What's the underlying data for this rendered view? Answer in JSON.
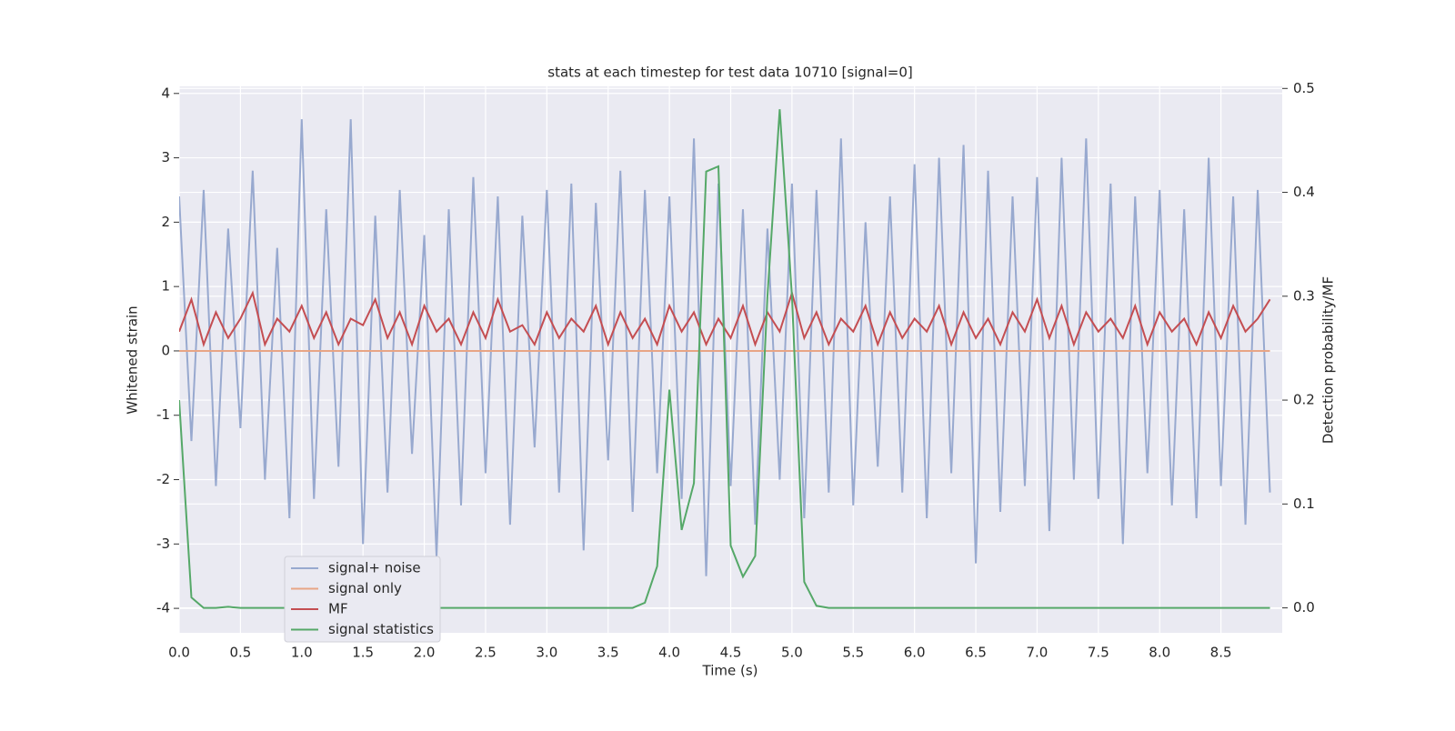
{
  "chart_data": {
    "type": "line",
    "title": "stats at each timestep for test data 10710 [signal=0]",
    "xlabel": "Time (s)",
    "ylabel": "Whitened strain",
    "y2label": "Detection probability/MF",
    "x": [
      0,
      0.1,
      0.2,
      0.3,
      0.4,
      0.5,
      0.6,
      0.7,
      0.8,
      0.9,
      1,
      1.1,
      1.2,
      1.3,
      1.4,
      1.5,
      1.6,
      1.7,
      1.8,
      1.9,
      2,
      2.1,
      2.2,
      2.3,
      2.4,
      2.5,
      2.6,
      2.7,
      2.8,
      2.9,
      3,
      3.1,
      3.2,
      3.3,
      3.4,
      3.5,
      3.6,
      3.7,
      3.8,
      3.9,
      4,
      4.1,
      4.2,
      4.3,
      4.4,
      4.5,
      4.6,
      4.7,
      4.8,
      4.9,
      5,
      5.1,
      5.2,
      5.3,
      5.4,
      5.5,
      5.6,
      5.7,
      5.8,
      5.9,
      6,
      6.1,
      6.2,
      6.3,
      6.4,
      6.5,
      6.6,
      6.7,
      6.8,
      6.9,
      7,
      7.1,
      7.2,
      7.3,
      7.4,
      7.5,
      7.6,
      7.7,
      7.8,
      7.9,
      8,
      8.1,
      8.2,
      8.3,
      8.4,
      8.5,
      8.6,
      8.7,
      8.8,
      8.9
    ],
    "series": [
      {
        "name": "signal+ noise",
        "color": "#98a9cf",
        "values": [
          2.4,
          -1.4,
          2.5,
          -2.1,
          1.9,
          -1.2,
          2.8,
          -2.0,
          1.6,
          -2.6,
          3.6,
          -2.3,
          2.2,
          -1.8,
          3.6,
          -3.0,
          2.1,
          -2.2,
          2.5,
          -1.6,
          1.8,
          -3.2,
          2.2,
          -2.4,
          2.7,
          -1.9,
          2.4,
          -2.7,
          2.1,
          -1.5,
          2.5,
          -2.2,
          2.6,
          -3.1,
          2.3,
          -1.7,
          2.8,
          -2.5,
          2.5,
          -1.9,
          2.4,
          -2.3,
          3.3,
          -3.5,
          2.6,
          -2.1,
          2.2,
          -2.7,
          1.9,
          -2.0,
          2.6,
          -2.6,
          2.5,
          -2.2,
          3.3,
          -2.4,
          2.0,
          -1.8,
          2.4,
          -2.2,
          2.9,
          -2.6,
          3.0,
          -1.9,
          3.2,
          -3.3,
          2.8,
          -2.5,
          2.4,
          -2.1,
          2.7,
          -2.8,
          3.0,
          -2.0,
          3.3,
          -2.3,
          2.6,
          -3.0,
          2.4,
          -1.9,
          2.5,
          -2.4,
          2.2,
          -2.6,
          3.0,
          -2.1,
          2.4,
          -2.7,
          2.5,
          -2.2
        ]
      },
      {
        "name": "signal only",
        "color": "#e8a585",
        "values": [
          0,
          0,
          0,
          0,
          0,
          0,
          0,
          0,
          0,
          0,
          0,
          0,
          0,
          0,
          0,
          0,
          0,
          0,
          0,
          0,
          0,
          0,
          0,
          0,
          0,
          0,
          0,
          0,
          0,
          0,
          0,
          0,
          0,
          0,
          0,
          0,
          0,
          0,
          0,
          0,
          0,
          0,
          0,
          0,
          0,
          0,
          0,
          0,
          0,
          0,
          0,
          0,
          0,
          0,
          0,
          0,
          0,
          0,
          0,
          0,
          0,
          0,
          0,
          0,
          0,
          0,
          0,
          0,
          0,
          0,
          0,
          0,
          0,
          0,
          0,
          0,
          0,
          0,
          0,
          0,
          0,
          0,
          0,
          0,
          0,
          0,
          0,
          0,
          0,
          0
        ]
      },
      {
        "name": "MF",
        "color": "#c44e52",
        "values": [
          0.3,
          0.8,
          0.1,
          0.6,
          0.2,
          0.5,
          0.9,
          0.1,
          0.5,
          0.3,
          0.7,
          0.2,
          0.6,
          0.1,
          0.5,
          0.4,
          0.8,
          0.2,
          0.6,
          0.1,
          0.7,
          0.3,
          0.5,
          0.1,
          0.6,
          0.2,
          0.8,
          0.3,
          0.4,
          0.1,
          0.6,
          0.2,
          0.5,
          0.3,
          0.7,
          0.1,
          0.6,
          0.2,
          0.5,
          0.1,
          0.7,
          0.3,
          0.6,
          0.1,
          0.5,
          0.2,
          0.7,
          0.1,
          0.6,
          0.3,
          0.9,
          0.2,
          0.6,
          0.1,
          0.5,
          0.3,
          0.7,
          0.1,
          0.6,
          0.2,
          0.5,
          0.3,
          0.7,
          0.1,
          0.6,
          0.2,
          0.5,
          0.1,
          0.6,
          0.3,
          0.8,
          0.2,
          0.7,
          0.1,
          0.6,
          0.3,
          0.5,
          0.2,
          0.7,
          0.1,
          0.6,
          0.3,
          0.5,
          0.1,
          0.6,
          0.2,
          0.7,
          0.3,
          0.5,
          0.8
        ]
      },
      {
        "name": "signal statistics",
        "color": "#55a868",
        "axis": "y2",
        "values": [
          0.2,
          0.01,
          0,
          0,
          0.001,
          0,
          0,
          0,
          0,
          0,
          0,
          0,
          0,
          0,
          0,
          0,
          0,
          0,
          0,
          0,
          0,
          0,
          0,
          0,
          0,
          0,
          0,
          0,
          0,
          0,
          0,
          0,
          0,
          0,
          0,
          0,
          0,
          0,
          0.005,
          0.04,
          0.21,
          0.075,
          0.12,
          0.42,
          0.425,
          0.06,
          0.03,
          0.05,
          0.3,
          0.48,
          0.3,
          0.025,
          0.002,
          0,
          0,
          0,
          0,
          0,
          0,
          0,
          0,
          0,
          0,
          0,
          0,
          0,
          0,
          0,
          0,
          0,
          0,
          0,
          0,
          0,
          0,
          0,
          0,
          0,
          0,
          0,
          0,
          0,
          0,
          0,
          0,
          0,
          0,
          0,
          0,
          0
        ]
      }
    ],
    "xlim": [
      0,
      9
    ],
    "xticks": [
      {
        "value": 0,
        "label": "0.0"
      },
      0.5,
      {
        "value": 1,
        "label": "1.0"
      },
      1.5,
      {
        "value": 2,
        "label": "2.0"
      },
      2.5,
      {
        "value": 3,
        "label": "3.0"
      },
      3.5,
      {
        "value": 4,
        "label": "4.0"
      },
      4.5,
      {
        "value": 5,
        "label": "5.0"
      },
      5.5,
      {
        "value": 6,
        "label": "6.0"
      },
      6.5,
      {
        "value": 7,
        "label": "7.0"
      },
      7.5,
      {
        "value": 8,
        "label": "8.0"
      },
      8.5
    ],
    "ylim": [
      -4.38,
      4.11
    ],
    "yticks": [
      -4,
      -3,
      -2,
      -1,
      0,
      1,
      2,
      3,
      4
    ],
    "y2lim": [
      -0.024,
      0.502
    ],
    "y2ticks": [
      {
        "value": 0,
        "label": "0.0"
      },
      0.1,
      0.2,
      0.3,
      0.4,
      0.5
    ],
    "grid": true,
    "legend": "lower left"
  }
}
